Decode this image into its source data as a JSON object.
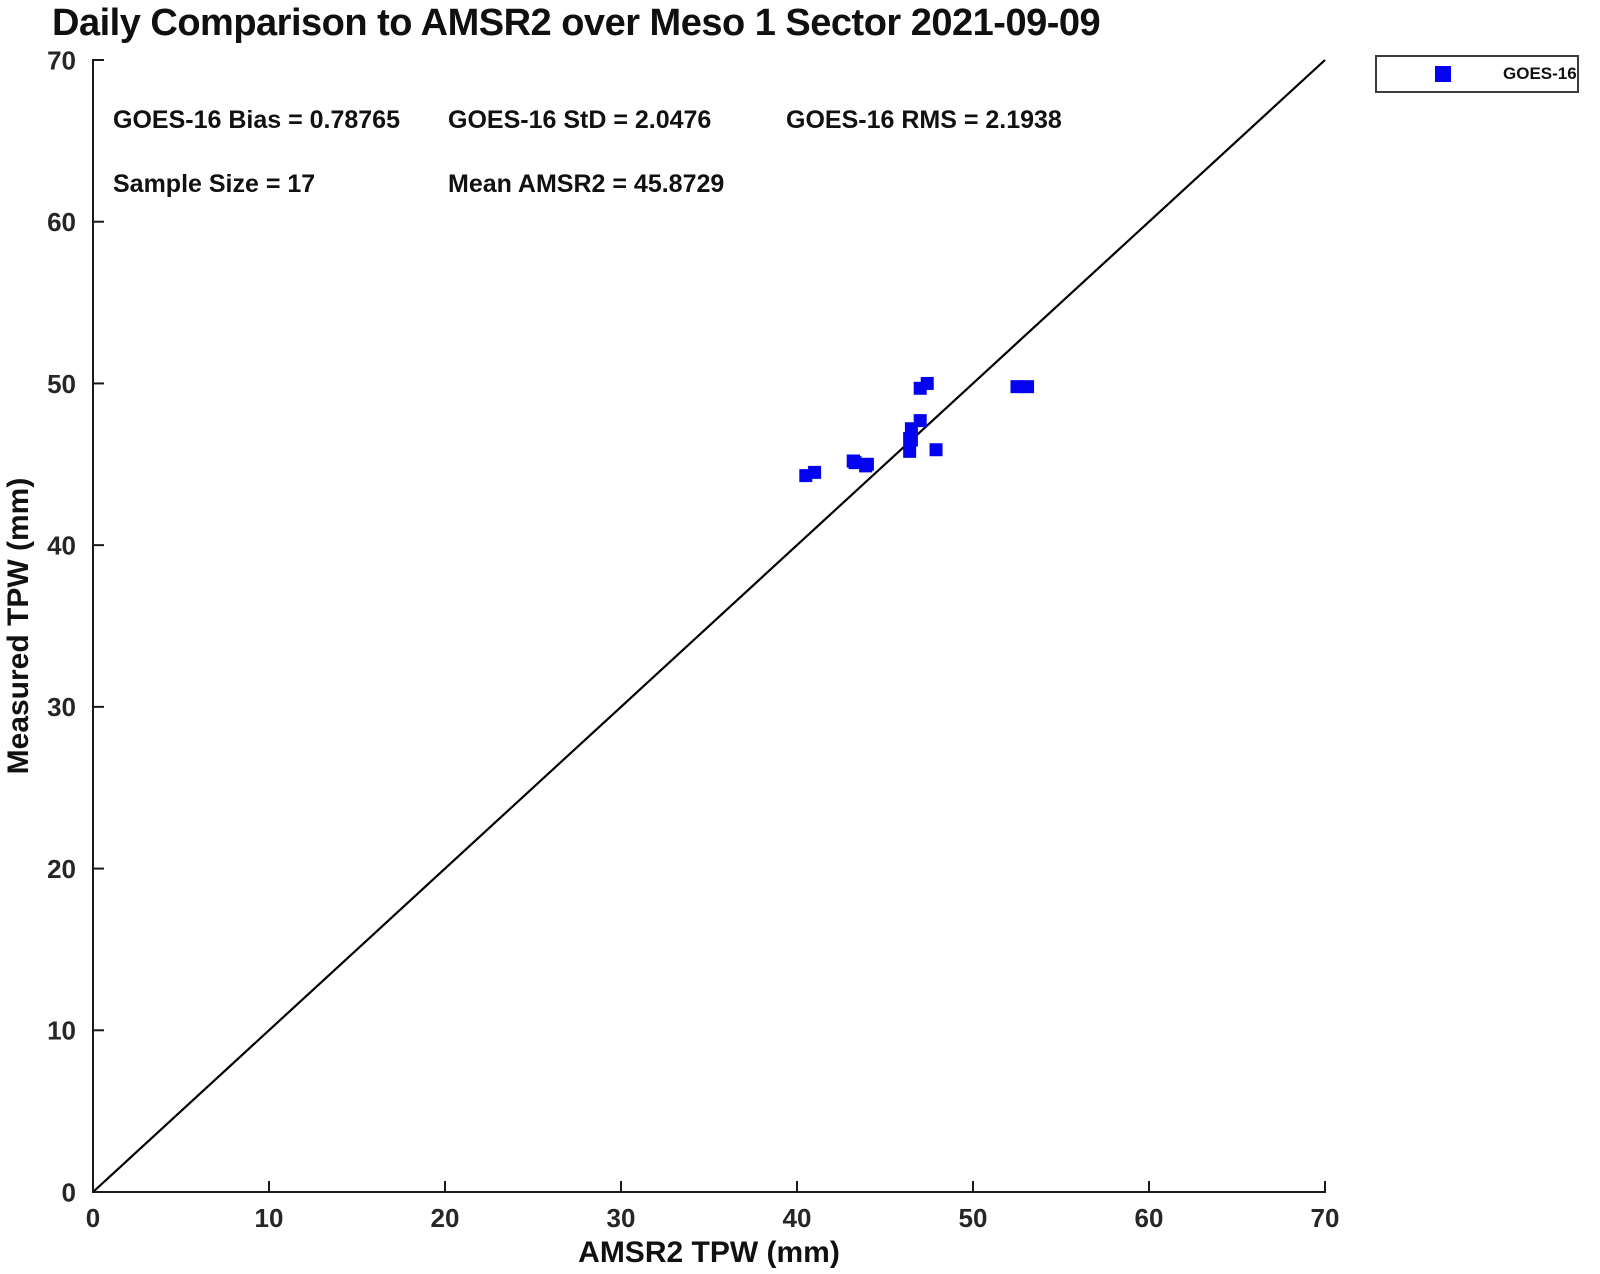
{
  "chart_data": {
    "type": "scatter",
    "title": "Daily Comparison to AMSR2 over Meso 1 Sector 2021-09-09",
    "xlabel": "AMSR2 TPW (mm)",
    "ylabel": "Measured TPW (mm)",
    "xlim": [
      0,
      70
    ],
    "ylim": [
      0,
      70
    ],
    "xticks": [
      0,
      10,
      20,
      30,
      40,
      50,
      60,
      70
    ],
    "yticks": [
      0,
      10,
      20,
      30,
      40,
      50,
      60,
      70
    ],
    "grid": false,
    "legend_position": "top-right",
    "axis_color": "#1a1a1a",
    "tick_label_color": "#262626",
    "series": [
      {
        "name": "GOES-16",
        "marker": "square",
        "marker_size": 13,
        "color": "#0303f0",
        "points": [
          [
            40.5,
            44.3
          ],
          [
            41.0,
            44.5
          ],
          [
            43.2,
            45.2
          ],
          [
            43.2,
            45.2
          ],
          [
            43.3,
            45.1
          ],
          [
            43.9,
            44.9
          ],
          [
            44.0,
            45.0
          ],
          [
            46.4,
            45.8
          ],
          [
            46.4,
            46.6
          ],
          [
            46.5,
            46.5
          ],
          [
            46.5,
            47.2
          ],
          [
            47.0,
            47.7
          ],
          [
            47.0,
            49.7
          ],
          [
            47.4,
            50.0
          ],
          [
            47.9,
            45.9
          ],
          [
            52.5,
            49.8
          ],
          [
            53.1,
            49.8
          ]
        ]
      }
    ],
    "reference_line": {
      "description": "1:1 identity line",
      "from": [
        0,
        0
      ],
      "to": [
        70,
        70
      ],
      "color": "#000000"
    },
    "stats": {
      "bias_text": "GOES-16 Bias = 0.78765",
      "std_text": "GOES-16 StD = 2.0476",
      "rms_text": "GOES-16 RMS = 2.1938",
      "sample_text": "Sample Size = 17",
      "mean_text": "Mean AMSR2 = 45.8729",
      "bias": 0.78765,
      "std": 2.0476,
      "rms": 2.1938,
      "sample_size": 17,
      "mean_amsr2": 45.8729
    }
  }
}
